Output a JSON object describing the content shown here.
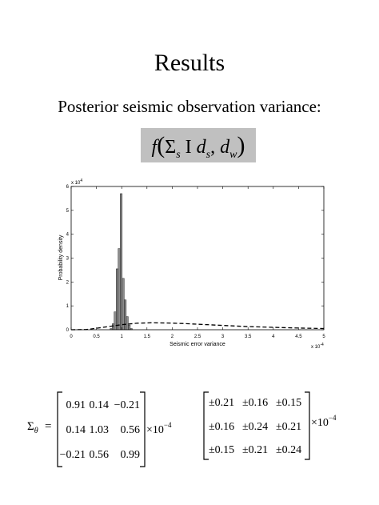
{
  "title": "Results",
  "subtitle": "Posterior seismic observation variance:",
  "formula": {
    "f": "f",
    "open": "(",
    "sigma": "Σ",
    "sigma_sub": "s",
    "bar": "I",
    "d1": "d",
    "d1_sub": "s",
    "comma": ",",
    "d2": "d",
    "d2_sub": "w",
    "close": ")"
  },
  "chart_data": {
    "type": "bar",
    "xlabel": "Seismic error variance",
    "ylabel": "Probability density",
    "x_multiplier": "x 10",
    "x_multiplier_exp": "-4",
    "y_multiplier": "x 10",
    "y_multiplier_exp": "4",
    "xlim": [
      0,
      5
    ],
    "ylim": [
      0,
      6
    ],
    "xticks": [
      "0",
      "0.5",
      "1",
      "1.5",
      "2",
      "2.5",
      "3",
      "3.5",
      "4",
      "4.5",
      "5"
    ],
    "yticks": [
      "0",
      "1",
      "2",
      "3",
      "4",
      "5",
      "6"
    ],
    "bars": {
      "x": [
        0.79,
        0.83,
        0.87,
        0.91,
        0.95,
        0.99,
        1.03,
        1.07,
        1.11,
        1.15,
        1.19
      ],
      "width": 0.04,
      "values": [
        0.05,
        0.25,
        0.75,
        2.55,
        3.4,
        5.7,
        2.15,
        1.25,
        0.55,
        0.2,
        0.05
      ]
    },
    "series": [
      {
        "style": "dashed",
        "x": [
          0,
          0.3,
          0.5,
          0.8,
          1.0,
          1.3,
          1.6,
          1.9,
          2.2,
          2.6,
          3.0,
          3.5,
          4.0,
          4.5,
          5.0
        ],
        "y": [
          0.0,
          0.01,
          0.06,
          0.15,
          0.21,
          0.27,
          0.29,
          0.28,
          0.26,
          0.22,
          0.18,
          0.13,
          0.1,
          0.07,
          0.05
        ]
      }
    ],
    "grid": false
  },
  "matrix1": {
    "label": "Σ",
    "label_sub": "θ",
    "equals": "=",
    "rows": [
      [
        "0.91",
        "0.14",
        "−0.21"
      ],
      [
        "0.14",
        "1.03",
        "0.56"
      ],
      [
        "−0.21",
        "0.56",
        "0.99"
      ]
    ],
    "times": "×10",
    "exponent": "−4"
  },
  "matrix2": {
    "rows": [
      [
        "±0.21",
        "±0.16",
        "±0.15"
      ],
      [
        "±0.16",
        "±0.24",
        "±0.21"
      ],
      [
        "±0.15",
        "±0.21",
        "±0.24"
      ]
    ],
    "times": "×10",
    "exponent": "−4"
  }
}
